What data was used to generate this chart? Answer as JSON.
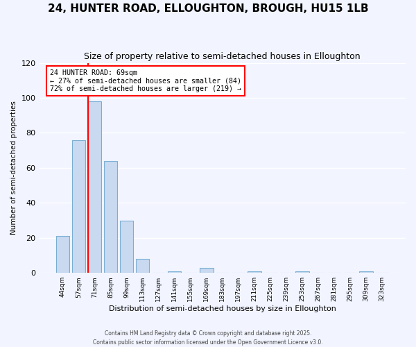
{
  "title": "24, HUNTER ROAD, ELLOUGHTON, BROUGH, HU15 1LB",
  "subtitle": "Size of property relative to semi-detached houses in Elloughton",
  "xlabel": "Distribution of semi-detached houses by size in Elloughton",
  "ylabel": "Number of semi-detached properties",
  "bar_labels": [
    "44sqm",
    "57sqm",
    "71sqm",
    "85sqm",
    "99sqm",
    "113sqm",
    "127sqm",
    "141sqm",
    "155sqm",
    "169sqm",
    "183sqm",
    "197sqm",
    "211sqm",
    "225sqm",
    "239sqm",
    "253sqm",
    "267sqm",
    "281sqm",
    "295sqm",
    "309sqm",
    "323sqm"
  ],
  "bar_values": [
    21,
    76,
    98,
    64,
    30,
    8,
    0,
    1,
    0,
    3,
    0,
    0,
    1,
    0,
    0,
    1,
    0,
    0,
    0,
    1,
    0
  ],
  "bar_color": "#c8d9f0",
  "bar_edge_color": "#7aafd4",
  "vline_color": "red",
  "annotation_title": "24 HUNTER ROAD: 69sqm",
  "annotation_line1": "← 27% of semi-detached houses are smaller (84)",
  "annotation_line2": "72% of semi-detached houses are larger (219) →",
  "annotation_box_color": "white",
  "annotation_box_edge_color": "red",
  "ylim": [
    0,
    120
  ],
  "yticks": [
    0,
    20,
    40,
    60,
    80,
    100,
    120
  ],
  "footer1": "Contains HM Land Registry data © Crown copyright and database right 2025.",
  "footer2": "Contains public sector information licensed under the Open Government Licence v3.0.",
  "bg_color": "#f2f5ff",
  "title_fontsize": 11,
  "subtitle_fontsize": 9
}
